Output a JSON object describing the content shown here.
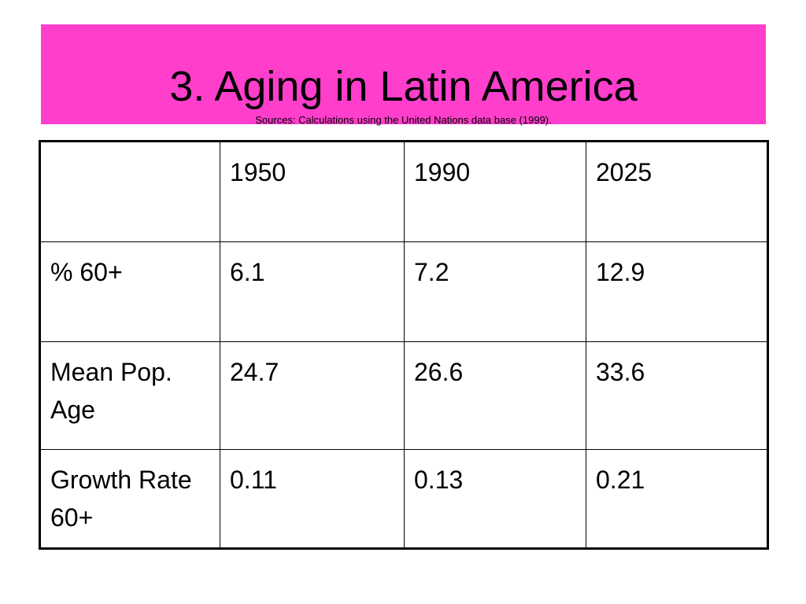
{
  "slide": {
    "title": "3. Aging in Latin America",
    "subtitle": "Sources: Calculations using the United Nations data base (1999).",
    "accent_color": "#ff3fcc"
  },
  "table": {
    "header": [
      "",
      "1950",
      "1990",
      "2025"
    ],
    "rows": [
      {
        "label": "% 60+",
        "values": [
          "6.1",
          "7.2",
          "12.9"
        ]
      },
      {
        "label": "Mean Pop. Age",
        "values": [
          "24.7",
          "26.6",
          "33.6"
        ]
      },
      {
        "label": "Growth Rate 60+",
        "values": [
          "0.11",
          "0.13",
          "0.21"
        ]
      }
    ]
  }
}
